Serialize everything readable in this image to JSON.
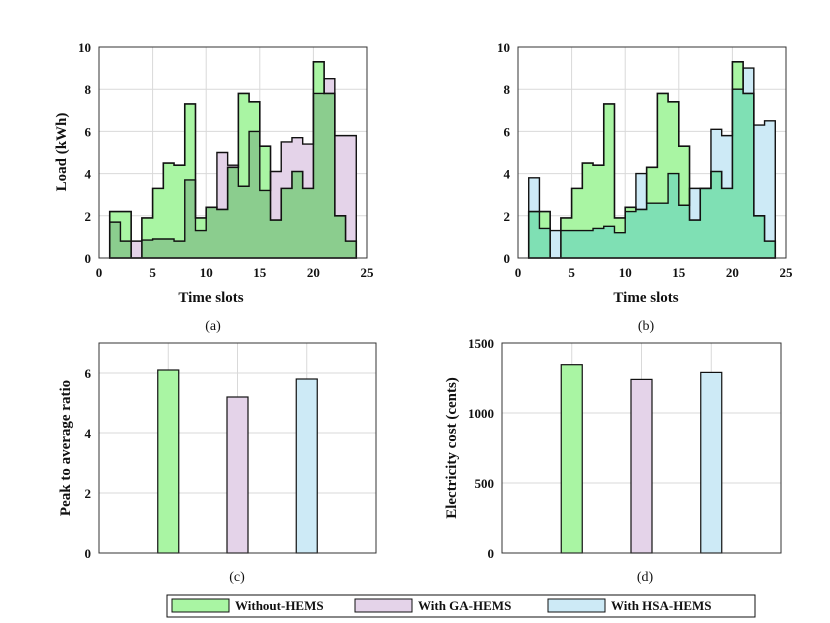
{
  "colors": {
    "without": "#a9f5a3",
    "ga": "#e4d3e9",
    "hsa": "#cdeaf6",
    "overlap_ab": "#8bcd8e",
    "overlap_bc": "#7fe0b4",
    "stroke": "#111111",
    "grid": "#d9d9d9"
  },
  "legend": {
    "items": [
      {
        "label": "Without-HEMS",
        "color": "#a9f5a3"
      },
      {
        "label": "With GA-HEMS",
        "color": "#e4d3e9"
      },
      {
        "label": "With HSA-HEMS",
        "color": "#cdeaf6"
      }
    ]
  },
  "chart_data": [
    {
      "id": "a",
      "type": "area",
      "caption": "(a)",
      "xlabel": "Time slots",
      "ylabel": "Load (kWh)",
      "xlim": [
        0,
        25
      ],
      "ylim": [
        0,
        10
      ],
      "xticks": [
        "0",
        "5",
        "10",
        "15",
        "20",
        "25"
      ],
      "yticks": [
        "0",
        "2",
        "4",
        "6",
        "8",
        "10"
      ],
      "x": [
        1,
        2,
        3,
        4,
        5,
        6,
        7,
        8,
        9,
        10,
        11,
        12,
        13,
        14,
        15,
        16,
        17,
        18,
        19,
        20,
        21,
        22,
        23,
        24
      ],
      "series": [
        {
          "name": "Without-HEMS",
          "values": [
            2.2,
            2.2,
            0.0,
            1.9,
            3.3,
            4.5,
            4.4,
            7.3,
            1.9,
            2.4,
            2.3,
            4.3,
            7.8,
            7.4,
            5.3,
            1.8,
            3.3,
            4.1,
            3.3,
            9.3,
            7.8,
            2.0,
            0.8,
            0.8
          ]
        },
        {
          "name": "With GA-HEMS",
          "values": [
            1.7,
            0.8,
            0.8,
            0.85,
            0.9,
            0.9,
            0.8,
            3.7,
            1.3,
            2.4,
            5.0,
            4.4,
            3.4,
            6.0,
            3.2,
            4.1,
            5.5,
            5.7,
            5.4,
            7.8,
            8.5,
            5.8,
            5.8,
            5.8
          ]
        }
      ]
    },
    {
      "id": "b",
      "type": "area",
      "caption": "(b)",
      "xlabel": "Time slots",
      "ylabel": "",
      "xlim": [
        0,
        25
      ],
      "ylim": [
        0,
        10
      ],
      "xticks": [
        "0",
        "5",
        "10",
        "15",
        "20",
        "25"
      ],
      "yticks": [
        "0",
        "2",
        "4",
        "6",
        "8",
        "10"
      ],
      "x": [
        1,
        2,
        3,
        4,
        5,
        6,
        7,
        8,
        9,
        10,
        11,
        12,
        13,
        14,
        15,
        16,
        17,
        18,
        19,
        20,
        21,
        22,
        23,
        24
      ],
      "series": [
        {
          "name": "Without-HEMS",
          "values": [
            2.2,
            2.2,
            0.0,
            1.9,
            3.3,
            4.5,
            4.4,
            7.3,
            1.9,
            2.4,
            2.3,
            4.3,
            7.8,
            7.4,
            5.3,
            1.8,
            3.3,
            4.1,
            3.3,
            9.3,
            7.8,
            2.0,
            0.8,
            0.8
          ]
        },
        {
          "name": "With HSA-HEMS",
          "values": [
            3.8,
            1.4,
            1.3,
            1.3,
            1.3,
            1.3,
            1.4,
            1.5,
            1.2,
            2.2,
            4.0,
            2.6,
            2.6,
            4.0,
            2.5,
            3.3,
            3.3,
            6.1,
            5.8,
            8.0,
            9.0,
            6.3,
            6.5,
            6.5
          ]
        }
      ]
    },
    {
      "id": "c",
      "type": "bar",
      "caption": "(c)",
      "ylabel": "Peak to average ratio",
      "categories": [
        "Without-HEMS",
        "With GA-HEMS",
        "With HSA-HEMS"
      ],
      "values": [
        6.1,
        5.2,
        5.8
      ],
      "ylim": [
        0,
        7
      ],
      "yticks": [
        "0",
        "2",
        "4",
        "6"
      ]
    },
    {
      "id": "d",
      "type": "bar",
      "caption": "(d)",
      "ylabel": "Electricity cost (cents)",
      "categories": [
        "Without-HEMS",
        "With GA-HEMS",
        "With HSA-HEMS"
      ],
      "values": [
        1345,
        1240,
        1290
      ],
      "ylim": [
        0,
        1500
      ],
      "yticks": [
        "0",
        "500",
        "1000",
        "1500"
      ]
    }
  ]
}
